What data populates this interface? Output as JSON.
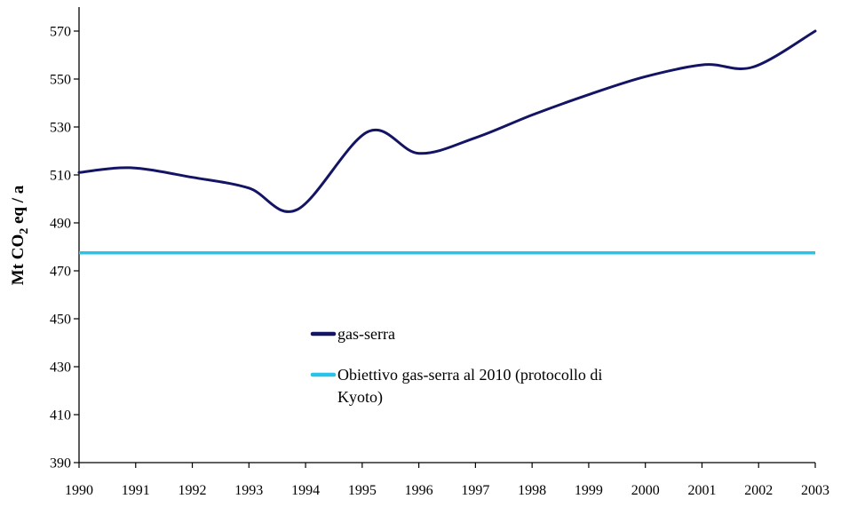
{
  "chart_data": {
    "type": "line",
    "title": "",
    "xlabel": "",
    "ylabel": {
      "main": "Mt CO",
      "subscript": "2",
      "rest": " eq / a"
    },
    "xlim": [
      1990,
      2003
    ],
    "ylim": [
      390,
      570
    ],
    "x_ticks": [
      1990,
      1991,
      1992,
      1993,
      1994,
      1995,
      1996,
      1997,
      1998,
      1999,
      2000,
      2001,
      2002,
      2003
    ],
    "y_ticks": [
      390,
      410,
      430,
      450,
      470,
      490,
      510,
      530,
      550,
      570
    ],
    "grid": false,
    "legend_position": "center-left",
    "series": [
      {
        "name": "gas-serra",
        "color": "#141464",
        "x": [
          1990,
          1990.9,
          1992,
          1993,
          1993.85,
          1995.1,
          1996,
          1997,
          1998,
          1999,
          2000,
          2001.05,
          2001.9,
          2003
        ],
        "values": [
          511,
          513,
          509,
          504.5,
          495.5,
          528,
          519,
          525.5,
          535,
          543.5,
          551,
          556,
          555,
          570
        ]
      }
    ],
    "reference_lines": [
      {
        "name": "Obiettivo gas-serra al 2010 (protocollo di",
        "name_line2": "Kyoto)",
        "color": "#29c3ea",
        "y": 477.5
      }
    ]
  }
}
